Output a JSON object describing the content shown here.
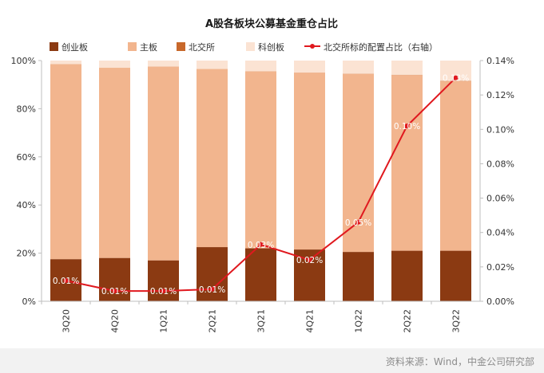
{
  "chart_data": {
    "type": "bar",
    "stacked": true,
    "title": "A股各板块公募基金重仓占比",
    "categories": [
      "3Q20",
      "4Q20",
      "1Q21",
      "2Q21",
      "3Q21",
      "4Q21",
      "1Q22",
      "2Q22",
      "3Q22"
    ],
    "series": [
      {
        "name": "创业板",
        "color": "#8B3A12",
        "values": [
          17.5,
          18.0,
          17.0,
          22.5,
          22.0,
          21.5,
          20.5,
          21.0,
          21.0
        ]
      },
      {
        "name": "主板",
        "color": "#F2B58E",
        "values": [
          81.0,
          79.0,
          80.5,
          74.0,
          73.5,
          73.5,
          74.0,
          73.0,
          70.5
        ]
      },
      {
        "name": "北交所",
        "color": "#C8682B",
        "values": [
          0.01,
          0.01,
          0.01,
          0.01,
          0.03,
          0.02,
          0.05,
          0.1,
          0.13
        ]
      },
      {
        "name": "科创板",
        "color": "#FBE3D3",
        "values": [
          1.49,
          2.99,
          2.49,
          3.49,
          4.47,
          4.98,
          5.45,
          5.9,
          8.37
        ]
      }
    ],
    "line": {
      "name": "北交所标的配置占比（右轴）",
      "color": "#E0191F",
      "values": [
        0.012,
        0.006,
        0.006,
        0.007,
        0.033,
        0.024,
        0.046,
        0.102,
        0.13
      ],
      "labels": [
        "0.01%",
        "0.01%",
        "0.01%",
        "0.01%",
        "0.03%",
        "0.02%",
        "0.05%",
        "0.10%",
        "0.13%"
      ]
    },
    "y_left": {
      "min": 0,
      "max": 100,
      "ticks": [
        "0%",
        "20%",
        "40%",
        "60%",
        "80%",
        "100%"
      ]
    },
    "y_right": {
      "min": 0,
      "max": 0.14,
      "ticks": [
        "0.00%",
        "0.02%",
        "0.04%",
        "0.06%",
        "0.08%",
        "0.10%",
        "0.12%",
        "0.14%"
      ]
    },
    "legend_position": "top",
    "grid": false
  },
  "source": "资料来源：Wind，中金公司研究部"
}
